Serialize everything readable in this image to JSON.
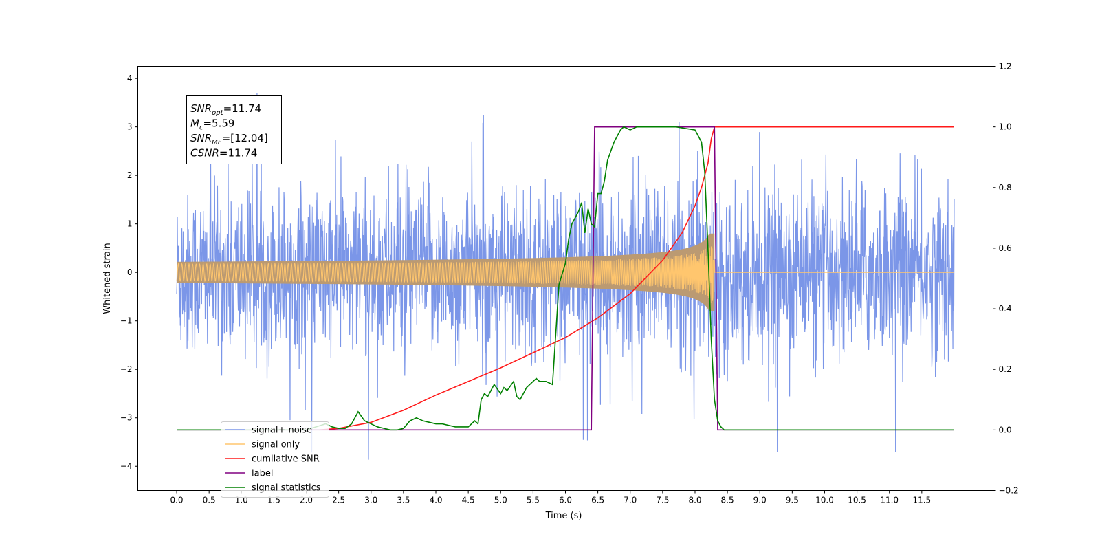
{
  "chart_data": {
    "type": "line",
    "xlabel": "Time (s)",
    "ylabel": "Whitened strain",
    "xlim": [
      -0.6,
      12.6
    ],
    "ylim_left": [
      -4.5,
      4.25
    ],
    "ylim_right": [
      -0.2,
      1.2
    ],
    "x_ticks": [
      "0.0",
      "0.5",
      "1.0",
      "1.5",
      "2.0",
      "2.5",
      "3.0",
      "3.5",
      "4.0",
      "4.5",
      "5.0",
      "5.5",
      "6.0",
      "6.5",
      "7.0",
      "7.5",
      "8.0",
      "8.5",
      "9.0",
      "9.5",
      "10.0",
      "10.5",
      "11.0",
      "11.5"
    ],
    "y_ticks_left": [
      "4",
      "3",
      "2",
      "1",
      "0",
      "−1",
      "−2",
      "−3",
      "−4"
    ],
    "y_ticks_right": [
      "1.2",
      "1.0",
      "0.8",
      "0.6",
      "0.4",
      "0.2",
      "0.0",
      "−0.2"
    ],
    "grid": false,
    "legend_position": "lower-left",
    "annotation": {
      "lines": [
        {
          "base": "SNR",
          "sub": "opt",
          "rest": "=11.74"
        },
        {
          "base": "M",
          "sub": "c",
          "rest": "=5.59"
        },
        {
          "base": "SNR",
          "sub": "MF",
          "rest": "=[12.04]"
        },
        {
          "base": "CSNR",
          "sub": "",
          "rest": "=11.74"
        }
      ]
    },
    "colors": {
      "noise": "#7b96e8",
      "signal": "#ffc66e",
      "overlap": "#bb9a72",
      "cumulative": "#ff1a1a",
      "label": "#800080",
      "statistics": "#008000"
    },
    "series": [
      {
        "name": "signal+ noise",
        "axis": "left",
        "description_values": {
          "time_range": [
            0.0,
            12.0
          ],
          "amplitude_range": [
            -3.7,
            3.85
          ]
        }
      },
      {
        "name": "signal only",
        "axis": "left",
        "description_values": {
          "peak_amplitude": 0.8,
          "peak_time": 8.25
        }
      },
      {
        "name": "cumilative SNR",
        "axis": "right",
        "x": [
          2.2,
          2.5,
          3.0,
          3.5,
          4.0,
          4.5,
          5.0,
          5.5,
          6.0,
          6.5,
          7.0,
          7.5,
          7.8,
          8.0,
          8.1,
          8.2,
          8.25,
          8.3,
          12.0
        ],
        "y": [
          0.0,
          0.005,
          0.025,
          0.065,
          0.115,
          0.16,
          0.205,
          0.255,
          0.305,
          0.37,
          0.45,
          0.56,
          0.65,
          0.74,
          0.8,
          0.88,
          0.96,
          1.0,
          1.0
        ]
      },
      {
        "name": "label",
        "axis": "right",
        "x": [
          0.0,
          6.4,
          6.45,
          8.3,
          8.35,
          12.0
        ],
        "y": [
          0.0,
          0.0,
          1.0,
          1.0,
          0.0,
          0.0
        ]
      },
      {
        "name": "signal statistics",
        "axis": "right",
        "x": [
          0.0,
          2.0,
          2.3,
          2.4,
          2.5,
          2.6,
          2.7,
          2.8,
          2.9,
          3.0,
          3.1,
          3.2,
          3.3,
          3.4,
          3.5,
          3.6,
          3.7,
          3.8,
          3.9,
          4.0,
          4.1,
          4.2,
          4.3,
          4.4,
          4.5,
          4.6,
          4.65,
          4.7,
          4.75,
          4.8,
          4.9,
          5.0,
          5.05,
          5.1,
          5.2,
          5.25,
          5.3,
          5.4,
          5.5,
          5.55,
          5.6,
          5.7,
          5.8,
          5.9,
          6.0,
          6.05,
          6.1,
          6.2,
          6.25,
          6.3,
          6.35,
          6.4,
          6.45,
          6.5,
          6.55,
          6.6,
          6.65,
          6.7,
          6.75,
          6.8,
          6.85,
          6.9,
          7.0,
          7.1,
          7.2,
          7.3,
          7.5,
          7.7,
          8.0,
          8.1,
          8.15,
          8.2,
          8.25,
          8.3,
          8.35,
          8.4,
          8.45,
          8.5,
          8.6,
          8.7,
          12.0
        ],
        "y": [
          0.0,
          0.0,
          0.02,
          0.01,
          0.005,
          0.005,
          0.02,
          0.06,
          0.03,
          0.02,
          0.01,
          0.005,
          0.0,
          0.0,
          0.005,
          0.03,
          0.04,
          0.03,
          0.025,
          0.02,
          0.02,
          0.015,
          0.01,
          0.01,
          0.01,
          0.03,
          0.02,
          0.1,
          0.12,
          0.11,
          0.15,
          0.12,
          0.14,
          0.13,
          0.16,
          0.11,
          0.1,
          0.14,
          0.16,
          0.17,
          0.16,
          0.16,
          0.15,
          0.48,
          0.55,
          0.63,
          0.68,
          0.72,
          0.75,
          0.65,
          0.73,
          0.68,
          0.67,
          0.78,
          0.78,
          0.82,
          0.89,
          0.92,
          0.95,
          0.97,
          0.99,
          1.0,
          0.99,
          1.0,
          1.0,
          1.0,
          1.0,
          1.0,
          0.99,
          0.95,
          0.85,
          0.6,
          0.3,
          0.1,
          0.03,
          0.01,
          0.0,
          0.0,
          0.0,
          0.0,
          0.0
        ]
      }
    ],
    "legend": [
      {
        "label": "signal+ noise",
        "color": "#7b96e8"
      },
      {
        "label": "signal only",
        "color": "#ffc66e"
      },
      {
        "label": "cumilative SNR",
        "color": "#ff1a1a"
      },
      {
        "label": "label",
        "color": "#800080"
      },
      {
        "label": "signal statistics",
        "color": "#008000"
      }
    ]
  }
}
